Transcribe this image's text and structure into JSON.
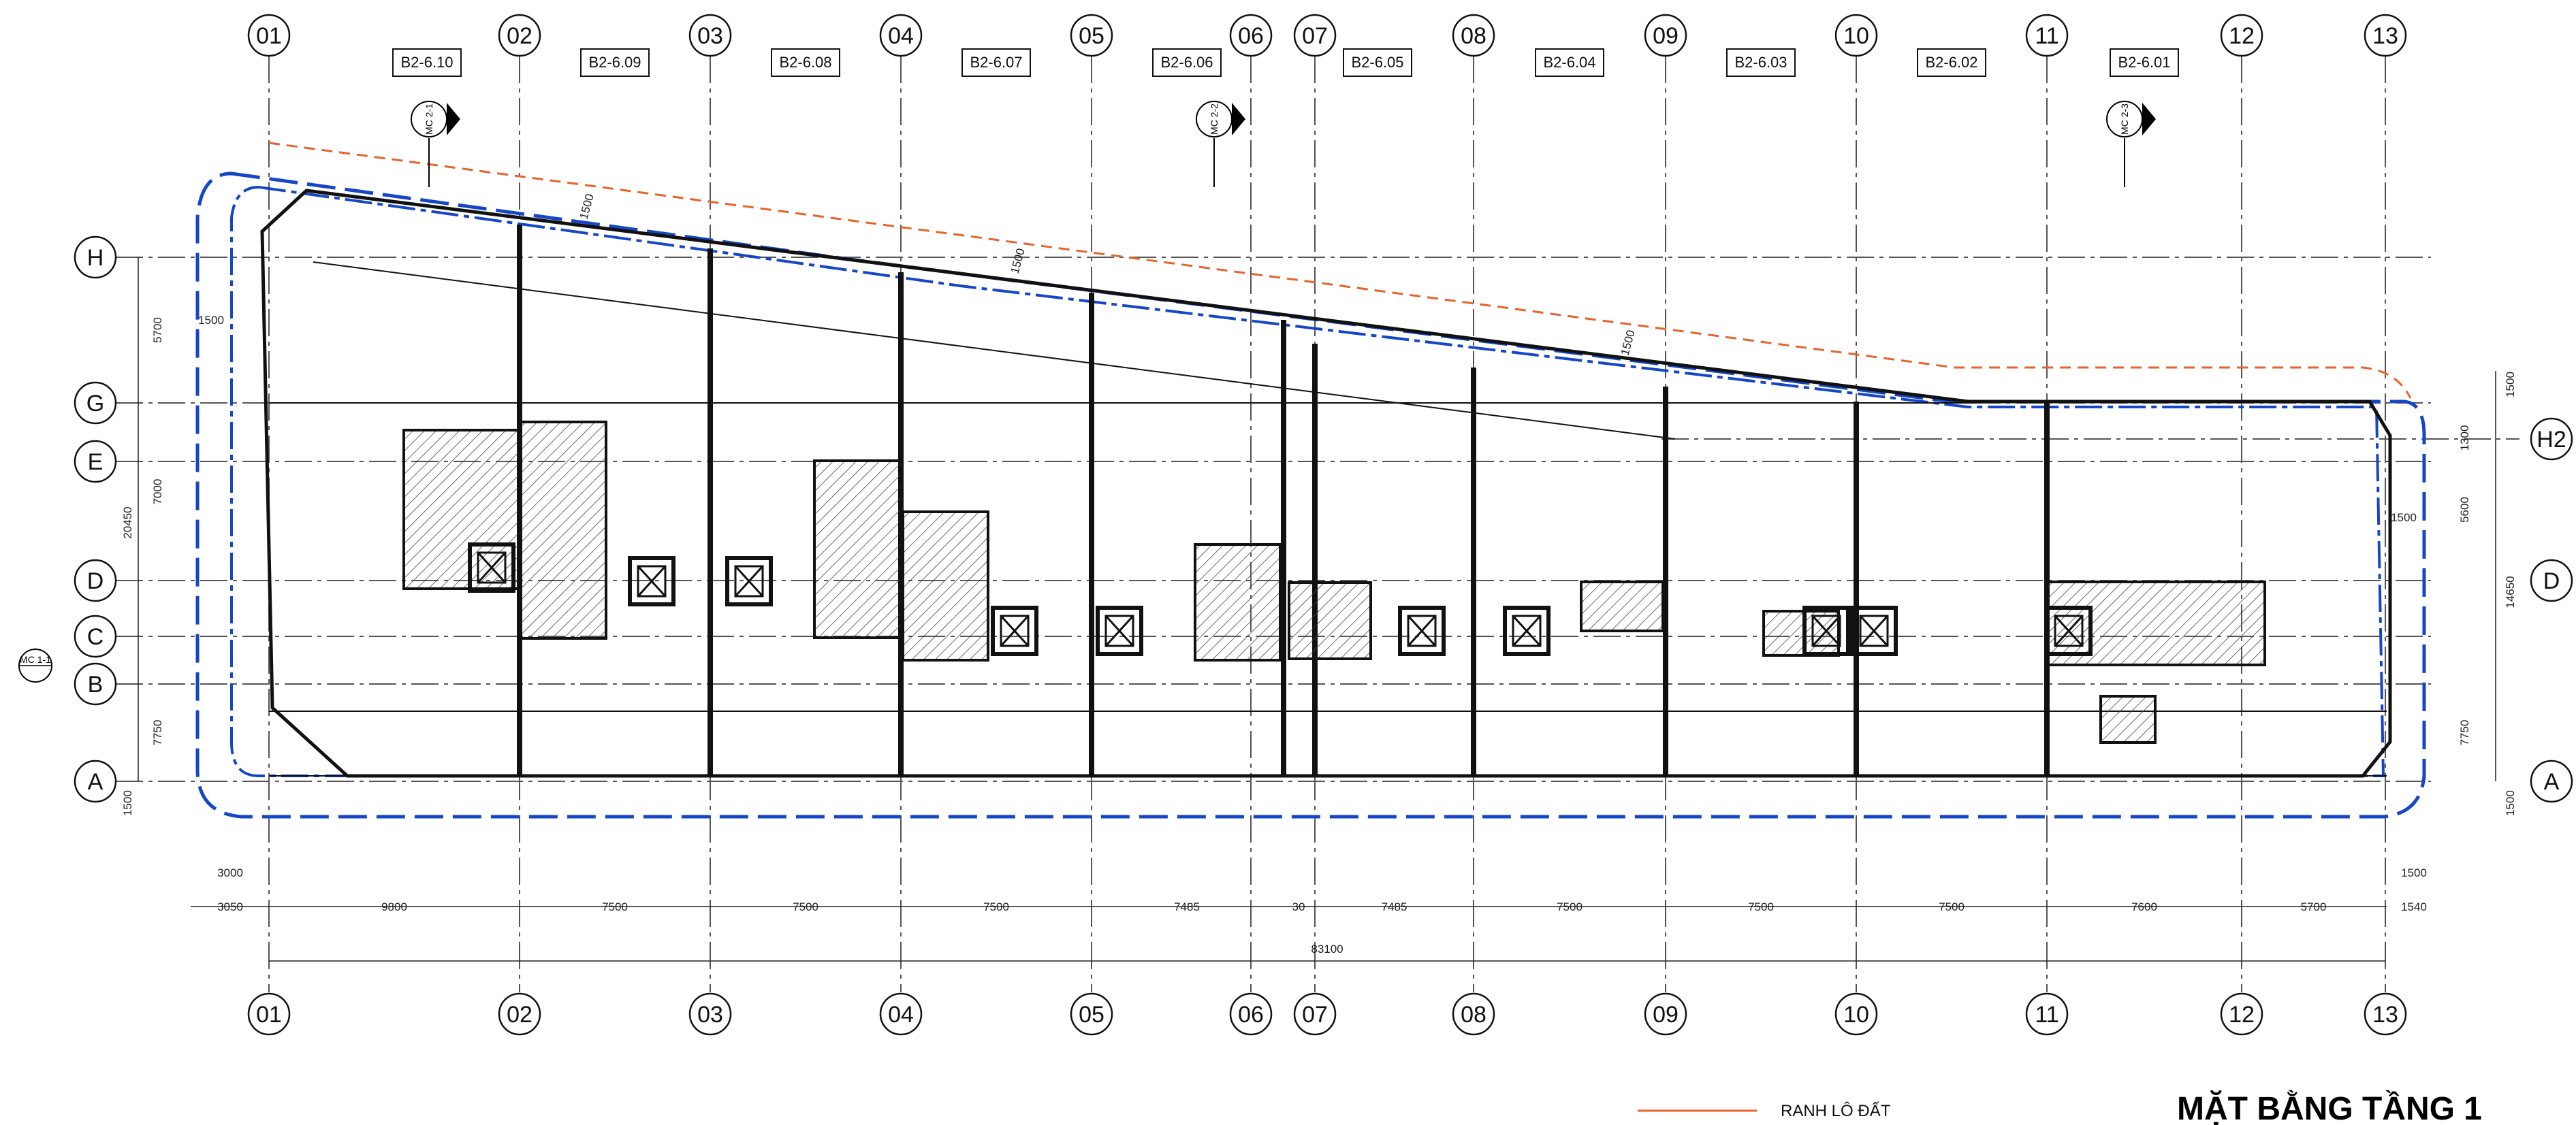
{
  "title": "MẶT BẰNG TẦNG 1",
  "legend": {
    "label": "RANH LÔ ĐẤT",
    "color": "#e8622c"
  },
  "colors": {
    "boundary_blue": "#1646c8",
    "grid": "#555555",
    "walls": "#111111",
    "hatch": "#333333",
    "dim_blue": "#1646c8"
  },
  "grid_columns": [
    "01",
    "02",
    "03",
    "04",
    "05",
    "06",
    "07",
    "08",
    "09",
    "10",
    "11",
    "12",
    "13"
  ],
  "grid_rows_left": [
    "H",
    "G",
    "E",
    "D",
    "C",
    "B",
    "A"
  ],
  "grid_rows_right": [
    "H2",
    "D",
    "A"
  ],
  "units": [
    "B2-6.10",
    "B2-6.09",
    "B2-6.08",
    "B2-6.07",
    "B2-6.06",
    "B2-6.05",
    "B2-6.04",
    "B2-6.03",
    "B2-6.02",
    "B2-6.01"
  ],
  "dims_bottom": {
    "offset_left": "3050",
    "offset_left_blue": "3000",
    "spans": [
      "9800",
      "7500",
      "7500",
      "7500",
      "7485",
      "30",
      "7485",
      "7500",
      "7500",
      "7500",
      "7600",
      "5700"
    ],
    "offset_right": "1540",
    "offset_right_blue": "1500",
    "total": "83100"
  },
  "dims_left": {
    "spans": [
      "5700",
      "7000",
      "7750"
    ],
    "edge": "1500",
    "total": "20450",
    "setback": "1500"
  },
  "dims_right": {
    "spans": [
      "1300",
      "5600",
      "7750"
    ],
    "top_edge": "1500",
    "bottom_edge": "1500",
    "total": "14650",
    "setback": "1500"
  },
  "dims_diagonal": [
    "1500",
    "1500",
    "1500"
  ],
  "section_marks": {
    "left": "MC 1-1",
    "top": [
      "MC 2-1",
      "MC 2-2",
      "MC 2-3"
    ]
  }
}
